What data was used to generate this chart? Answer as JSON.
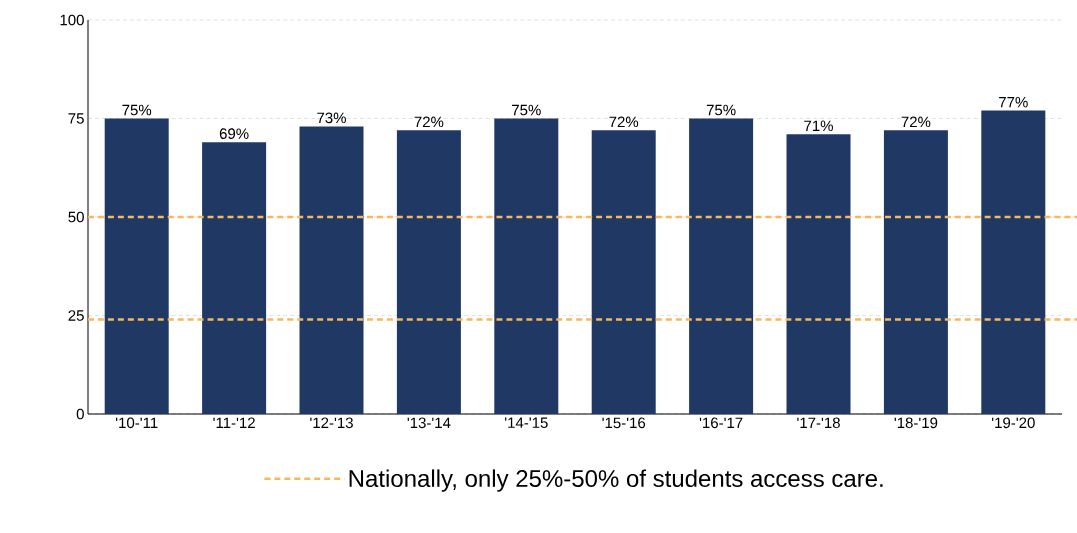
{
  "chart_data": {
    "type": "bar",
    "categories": [
      "'10-'11",
      "'11-'12",
      "'12-'13",
      "'13-'14",
      "'14-'15",
      "'15-'16",
      "'16-'17",
      "'17-'18",
      "'18-'19",
      "'19-'20"
    ],
    "values": [
      75,
      69,
      73,
      72,
      75,
      72,
      75,
      71,
      72,
      77
    ],
    "value_labels": [
      "75%",
      "69%",
      "73%",
      "72%",
      "75%",
      "72%",
      "75%",
      "71%",
      "72%",
      "77%"
    ],
    "color": "#1f3864",
    "ylim": [
      0,
      100
    ],
    "yticks": [
      0,
      25,
      50,
      75,
      100
    ],
    "grid": "y",
    "legend": "bottom",
    "ref_lines": [
      {
        "axis": "y",
        "value": 50,
        "label": "Nationally, only 25%-50% of students access care.",
        "color": "#f5b85a",
        "line_style": "dashed"
      },
      {
        "axis": "y",
        "value": 24,
        "color": "#f5b85a",
        "line_style": "dashed"
      }
    ]
  }
}
